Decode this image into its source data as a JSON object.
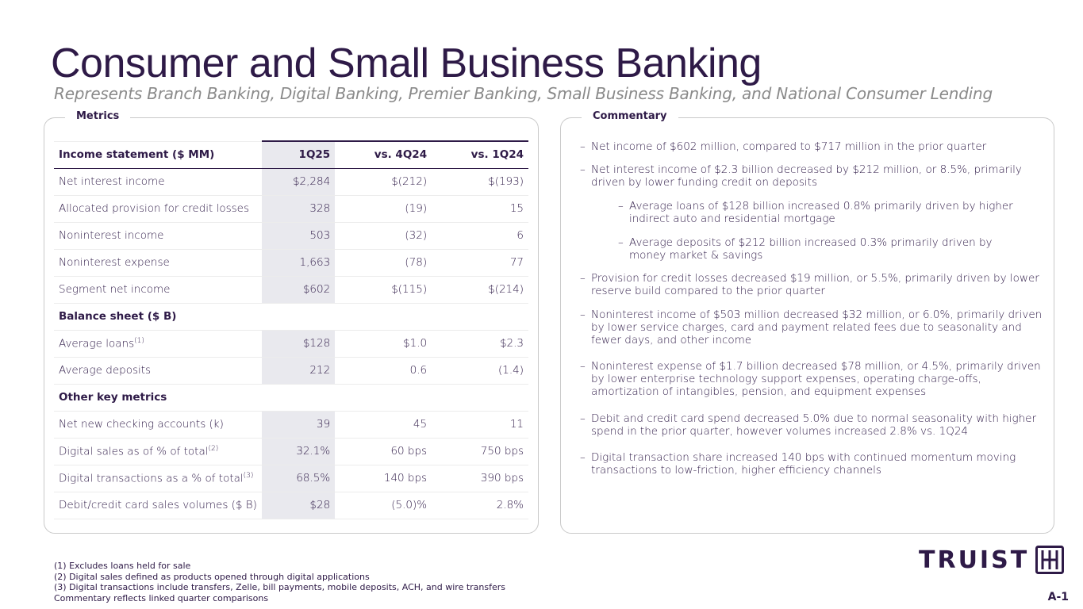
{
  "title": "Consumer and Small Business Banking",
  "subtitle": "Represents Branch Banking, Digital Banking, Premier Banking, Small Business Banking, and National Consumer Lending",
  "metrics": {
    "label": "Metrics",
    "headers": [
      "Income statement ($ MM)",
      "1Q25",
      "vs. 4Q24",
      "vs. 1Q24"
    ],
    "rows": [
      {
        "label": "Net interest income",
        "v": [
          "$2,284",
          "$(212)",
          "$(193)"
        ]
      },
      {
        "label": "Allocated provision for credit losses",
        "v": [
          "328",
          "(19)",
          "15"
        ]
      },
      {
        "label": "Noninterest income",
        "v": [
          "503",
          "(32)",
          "6"
        ]
      },
      {
        "label": "Noninterest expense",
        "v": [
          "1,663",
          "(78)",
          "77"
        ]
      },
      {
        "label": "Segment net income",
        "v": [
          "$602",
          "$(115)",
          "$(214)"
        ]
      },
      {
        "section": "Balance sheet ($ B)"
      },
      {
        "label": "Average loans",
        "sup": "(1)",
        "v": [
          "$128",
          "$1.0",
          "$2.3"
        ]
      },
      {
        "label": "Average deposits",
        "v": [
          "212",
          "0.6",
          "(1.4)"
        ]
      },
      {
        "section": "Other key metrics"
      },
      {
        "label": "Net new checking accounts (k)",
        "v": [
          "39",
          "45",
          "11"
        ]
      },
      {
        "label": "Digital sales as of % of total",
        "sup": "(2)",
        "v": [
          "32.1%",
          "60 bps",
          "750 bps"
        ]
      },
      {
        "label": "Digital transactions as a % of total",
        "sup": "(3)",
        "v": [
          "68.5%",
          "140 bps",
          "390 bps"
        ]
      },
      {
        "label": "Debit/credit card sales volumes ($ B)",
        "v": [
          "$28",
          "(5.0)%",
          "2.8%"
        ]
      }
    ]
  },
  "commentary": {
    "label": "Commentary",
    "dash": "–",
    "items": [
      {
        "level": 1,
        "text": "Net income of $602 million, compared to $717 million in the prior quarter"
      },
      {
        "level": 1,
        "text": "Net interest income of $2.3 billion decreased by $212 million, or 8.5%, primarily driven by lower funding credit on deposits"
      },
      {
        "level": 2,
        "text": "Average loans of $128 billion increased 0.8% primarily driven by higher indirect auto and residential mortgage"
      },
      {
        "level": 2,
        "text": "Average deposits of $212 billion increased 0.3% primarily driven by money market & savings"
      },
      {
        "level": 1,
        "text": "Provision for credit losses decreased $19 million, or 5.5%, primarily driven by lower reserve build compared to the prior quarter"
      },
      {
        "level": 1,
        "text": "Noninterest income of $503 million decreased $32 million, or 6.0%, primarily driven by lower service charges, card and payment related fees due to seasonality and fewer days, and other income"
      },
      {
        "level": 1,
        "text": "Noninterest expense of $1.7 billion decreased $78 million, or 4.5%, primarily driven by lower enterprise technology support expenses, operating charge-offs, amortization of intangibles, pension, and equipment expenses"
      },
      {
        "level": 1,
        "text": "Debit and credit card spend decreased 5.0% due to normal seasonality with higher spend in the prior quarter, however volumes increased 2.8% vs. 1Q24"
      },
      {
        "level": 1,
        "text": "Digital transaction share increased 140 bps with continued momentum moving transactions to low-friction, higher efficiency channels"
      }
    ]
  },
  "footnotes": [
    "(1)  Excludes loans held for sale",
    "(2)  Digital sales defined as products opened through digital applications",
    "(3)  Digital transactions include transfers, Zelle, bill payments, mobile deposits, ACH, and wire transfers",
    "Commentary reflects linked quarter comparisons"
  ],
  "logo": "TRUIST",
  "page": "A-1",
  "colors": {
    "brand": "#2e1a47",
    "highlight": "#e9e9ee"
  }
}
